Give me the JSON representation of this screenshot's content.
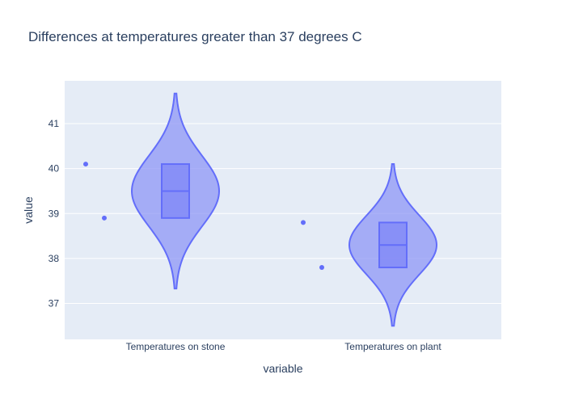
{
  "chart_data": {
    "type": "violin",
    "title": "Differences at temperatures greater than 37 degrees C",
    "xlabel": "variable",
    "ylabel": "value",
    "categories": [
      "Temperatures on stone",
      "Temperatures on plant"
    ],
    "yticks": [
      37,
      38,
      39,
      40,
      41
    ],
    "ylim": [
      36.2,
      42.0
    ],
    "grid": true,
    "colors": {
      "fill": "#8a93f5",
      "line": "#636efa",
      "plot_bg": "#e5ecf6",
      "text": "#2a3f5f"
    },
    "series": [
      {
        "category": "Temperatures on stone",
        "points": [
          40.1,
          38.9
        ],
        "q1": 38.9,
        "median": 39.5,
        "q3": 40.1,
        "kde_min": 37.33,
        "kde_max": 41.67
      },
      {
        "category": "Temperatures on plant",
        "points": [
          38.8,
          37.8
        ],
        "q1": 37.8,
        "median": 38.3,
        "q3": 38.8,
        "kde_min": 36.5,
        "kde_max": 40.1
      }
    ]
  }
}
